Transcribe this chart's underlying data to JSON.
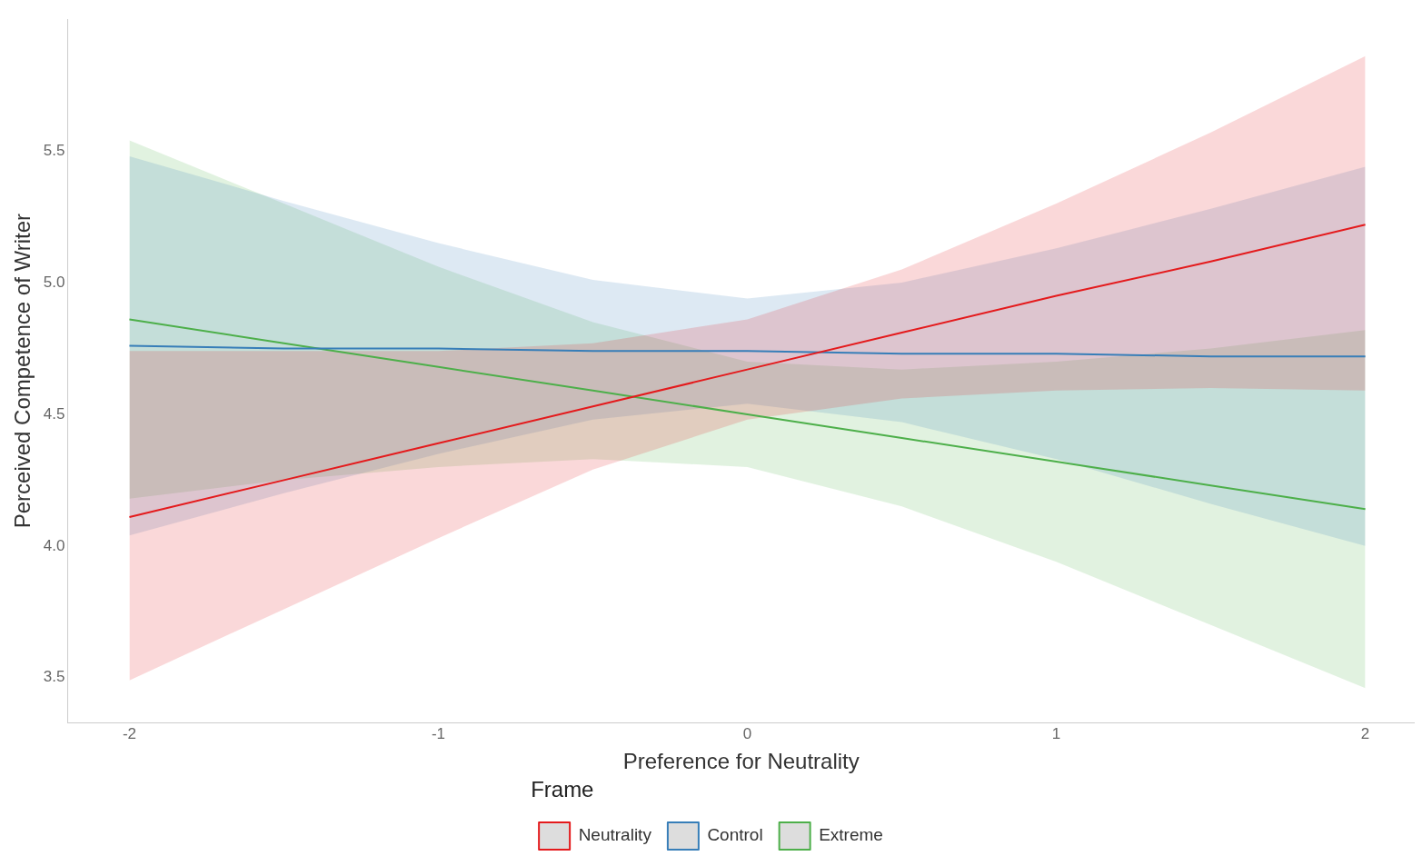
{
  "chart_data": {
    "type": "line",
    "xlabel": "Preference for Neutrality",
    "ylabel": "Perceived Competence of Writer",
    "legend_title": "Frame",
    "legend": "bottom",
    "grid": false,
    "marker": "none",
    "line_style": "solid",
    "xlim": [
      -2.2,
      2.16
    ],
    "xticks": [
      {
        "value": -2,
        "label": "-2"
      },
      {
        "value": -1,
        "label": "-1"
      },
      0,
      1,
      2
    ],
    "ylim": [
      3.33,
      6.0
    ],
    "yticks": [
      3.5,
      {
        "value": 4,
        "label": "4.0"
      },
      4.5,
      {
        "value": 5,
        "label": "5.0"
      },
      5.5
    ],
    "series": [
      {
        "name": "Neutrality",
        "color": "#e41a1c",
        "x": [
          -2,
          -1.5,
          -1,
          -0.5,
          0,
          0.5,
          1,
          1.5,
          2
        ],
        "values": [
          4.11,
          4.25,
          4.39,
          4.53,
          4.67,
          4.81,
          4.95,
          5.08,
          5.22
        ],
        "lower": [
          3.49,
          3.76,
          4.03,
          4.29,
          4.48,
          4.56,
          4.59,
          4.6,
          4.59
        ],
        "upper": [
          4.74,
          4.74,
          4.74,
          4.77,
          4.86,
          5.05,
          5.3,
          5.57,
          5.86
        ]
      },
      {
        "name": "Control",
        "color": "#377eb8",
        "x": [
          -2,
          -1.5,
          -1,
          -0.5,
          0,
          0.5,
          1,
          1.5,
          2
        ],
        "values": [
          4.76,
          4.75,
          4.75,
          4.74,
          4.74,
          4.73,
          4.73,
          4.72,
          4.72
        ],
        "lower": [
          4.04,
          4.2,
          4.35,
          4.48,
          4.54,
          4.47,
          4.33,
          4.16,
          4.0
        ],
        "upper": [
          5.48,
          5.31,
          5.15,
          5.01,
          4.94,
          5.0,
          5.13,
          5.28,
          5.44
        ]
      },
      {
        "name": "Extreme",
        "color": "#4daf4a",
        "x": [
          -2,
          -1.5,
          -1,
          -0.5,
          0,
          0.5,
          1,
          1.5,
          2
        ],
        "values": [
          4.86,
          4.77,
          4.68,
          4.59,
          4.5,
          4.41,
          4.32,
          4.23,
          4.14
        ],
        "lower": [
          4.18,
          4.25,
          4.3,
          4.33,
          4.3,
          4.15,
          3.94,
          3.7,
          3.46
        ],
        "upper": [
          5.54,
          5.3,
          5.06,
          4.85,
          4.7,
          4.67,
          4.7,
          4.75,
          4.82
        ]
      }
    ]
  }
}
